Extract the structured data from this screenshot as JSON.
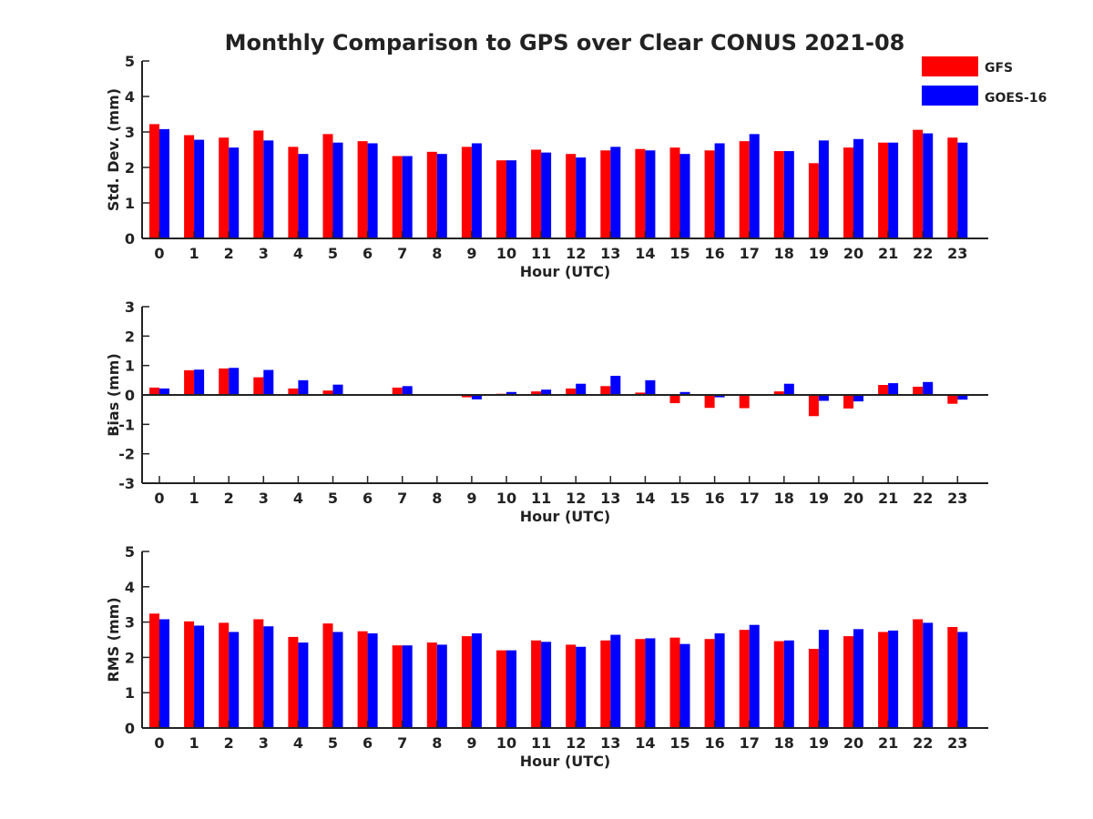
{
  "figure": {
    "title": "Monthly Comparison to GPS over Clear CONUS 2021-08",
    "legend": {
      "placement": "top-right",
      "entries": [
        "GFS",
        "GOES-16"
      ]
    },
    "colors": {
      "GFS": "#ff0000",
      "GOES-16": "#0000ff",
      "axis": "#222222"
    }
  },
  "chart_data": [
    {
      "type": "bar",
      "ylabel": "Std. Dev. (mm)",
      "xlabel": "Hour (UTC)",
      "ylim": [
        0,
        5
      ],
      "yticks": [
        0,
        1,
        2,
        3,
        4,
        5
      ],
      "grid": false,
      "categories": [
        "0",
        "1",
        "2",
        "3",
        "4",
        "5",
        "6",
        "7",
        "8",
        "9",
        "10",
        "11",
        "12",
        "13",
        "14",
        "15",
        "16",
        "17",
        "18",
        "19",
        "20",
        "21",
        "22",
        "23"
      ],
      "series": [
        {
          "name": "GFS",
          "values": [
            3.22,
            2.91,
            2.84,
            3.04,
            2.58,
            2.94,
            2.74,
            2.32,
            2.44,
            2.58,
            2.2,
            2.5,
            2.38,
            2.48,
            2.52,
            2.56,
            2.48,
            2.74,
            2.46,
            2.12,
            2.56,
            2.7,
            3.06,
            2.84
          ]
        },
        {
          "name": "GOES-16",
          "values": [
            3.08,
            2.78,
            2.56,
            2.76,
            2.38,
            2.7,
            2.68,
            2.32,
            2.38,
            2.68,
            2.2,
            2.42,
            2.28,
            2.58,
            2.48,
            2.38,
            2.68,
            2.94,
            2.46,
            2.76,
            2.8,
            2.7,
            2.96,
            2.7
          ]
        }
      ]
    },
    {
      "type": "bar",
      "ylabel": "Bias (mm)",
      "xlabel": "Hour (UTC)",
      "ylim": [
        -3,
        3
      ],
      "yticks": [
        -3,
        -2,
        -1,
        0,
        1,
        2,
        3
      ],
      "grid": false,
      "zero_line": true,
      "categories": [
        "0",
        "1",
        "2",
        "3",
        "4",
        "5",
        "6",
        "7",
        "8",
        "9",
        "10",
        "11",
        "12",
        "13",
        "14",
        "15",
        "16",
        "17",
        "18",
        "19",
        "20",
        "21",
        "22",
        "23"
      ],
      "series": [
        {
          "name": "GFS",
          "values": [
            0.25,
            0.84,
            0.9,
            0.6,
            0.22,
            0.15,
            0.0,
            0.25,
            -0.03,
            -0.08,
            0.04,
            0.12,
            0.22,
            0.3,
            0.08,
            -0.28,
            -0.44,
            -0.45,
            0.12,
            -0.72,
            -0.46,
            0.34,
            0.28,
            -0.3
          ]
        },
        {
          "name": "GOES-16",
          "values": [
            0.22,
            0.86,
            0.92,
            0.85,
            0.5,
            0.35,
            0.03,
            0.3,
            -0.01,
            -0.15,
            0.1,
            0.18,
            0.38,
            0.65,
            0.5,
            0.1,
            -0.08,
            0.02,
            0.38,
            -0.2,
            -0.22,
            0.4,
            0.44,
            -0.16
          ]
        }
      ]
    },
    {
      "type": "bar",
      "ylabel": "RMS (mm)",
      "xlabel": "Hour (UTC)",
      "ylim": [
        0,
        5
      ],
      "yticks": [
        0,
        1,
        2,
        3,
        4,
        5
      ],
      "grid": false,
      "categories": [
        "0",
        "1",
        "2",
        "3",
        "4",
        "5",
        "6",
        "7",
        "8",
        "9",
        "10",
        "11",
        "12",
        "13",
        "14",
        "15",
        "16",
        "17",
        "18",
        "19",
        "20",
        "21",
        "22",
        "23"
      ],
      "series": [
        {
          "name": "GFS",
          "values": [
            3.24,
            3.02,
            2.98,
            3.08,
            2.58,
            2.96,
            2.74,
            2.34,
            2.42,
            2.6,
            2.2,
            2.48,
            2.36,
            2.48,
            2.52,
            2.56,
            2.52,
            2.78,
            2.46,
            2.24,
            2.6,
            2.72,
            3.08,
            2.86
          ]
        },
        {
          "name": "GOES-16",
          "values": [
            3.08,
            2.9,
            2.72,
            2.88,
            2.42,
            2.72,
            2.68,
            2.34,
            2.36,
            2.68,
            2.2,
            2.44,
            2.3,
            2.64,
            2.54,
            2.38,
            2.68,
            2.92,
            2.48,
            2.78,
            2.8,
            2.76,
            2.98,
            2.72
          ]
        }
      ]
    }
  ]
}
